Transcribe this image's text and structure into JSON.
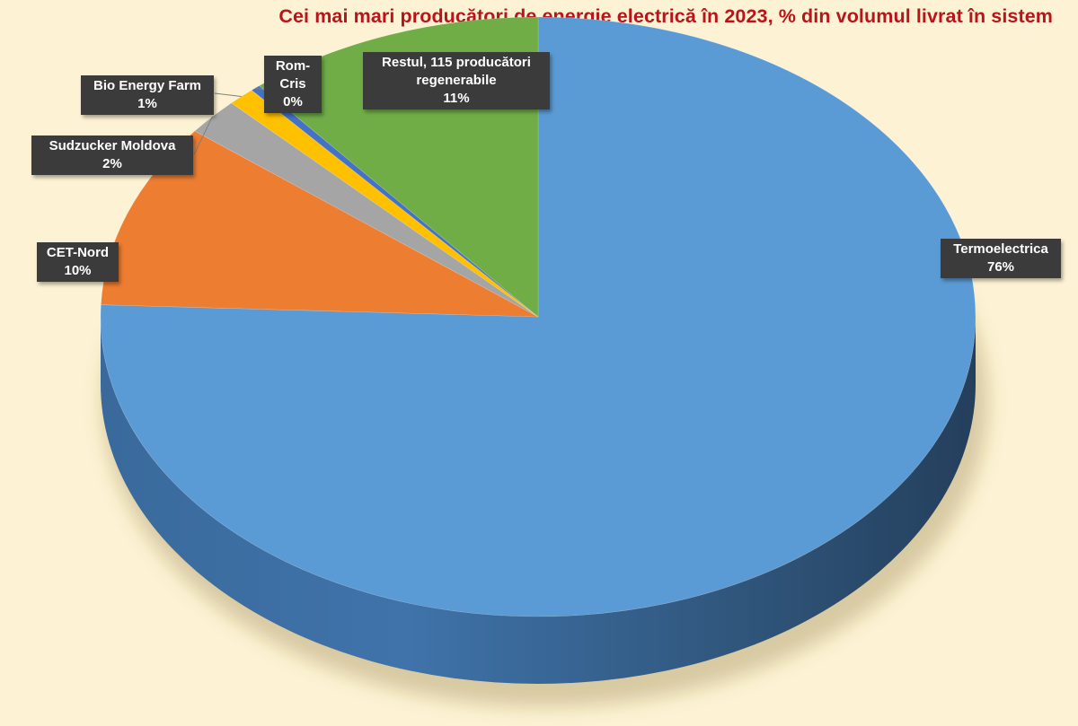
{
  "chart_data": {
    "type": "pie",
    "title": "Cei mai mari producători de energie electrică în 2023, % din volumul livrat în sistem",
    "slices": [
      {
        "name": "Termoelectrica",
        "value": 76,
        "label": "76%",
        "color": "#5b9bd5"
      },
      {
        "name": "CET-Nord",
        "value": 10,
        "label": "10%",
        "color": "#ed7d31"
      },
      {
        "name": "Sudzucker Moldova",
        "value": 2,
        "label": "2%",
        "color": "#a5a5a5"
      },
      {
        "name": "Bio Energy Farm",
        "value": 1,
        "label": "1%",
        "color": "#ffc000"
      },
      {
        "name": "Rom-Cris",
        "value": 0,
        "label": "0%",
        "color": "#4472c4"
      },
      {
        "name": "Restul, 115 producători regenerabile",
        "label": "11%",
        "value": 11,
        "color": "#70ad47"
      }
    ],
    "background": "#fdf3d4",
    "title_color": "#b7151a",
    "label_background": "#3b3b3b"
  }
}
